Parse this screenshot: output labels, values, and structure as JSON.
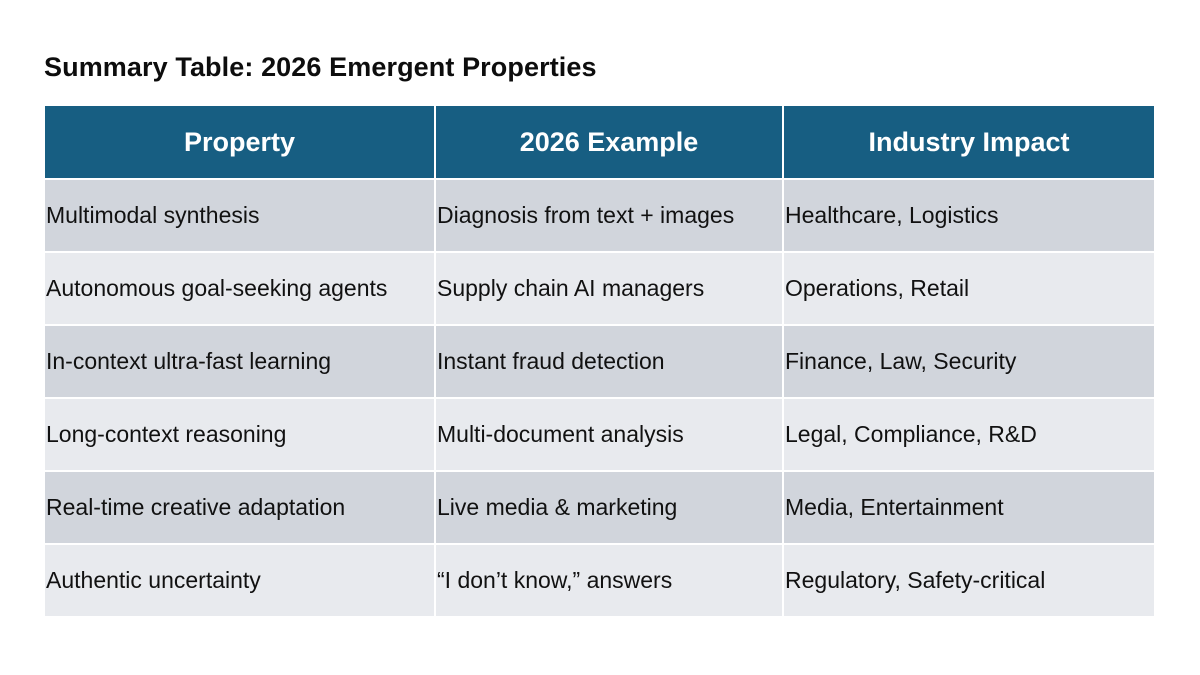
{
  "title": "Summary Table: 2026 Emergent Properties",
  "table": {
    "headers": [
      "Property",
      "2026 Example",
      "Industry Impact"
    ],
    "rows": [
      [
        "Multimodal synthesis",
        "Diagnosis from text + images",
        "Healthcare, Logistics"
      ],
      [
        "Autonomous goal-seeking agents",
        "Supply chain AI managers",
        "Operations, Retail"
      ],
      [
        "In-context ultra-fast learning",
        "Instant fraud detection",
        "Finance, Law, Security"
      ],
      [
        "Long-context reasoning",
        "Multi-document analysis",
        "Legal, Compliance, R&D"
      ],
      [
        "Real-time creative adaptation",
        "Live media & marketing",
        "Media, Entertainment"
      ],
      [
        "Authentic uncertainty",
        "“I don’t know,” answers",
        "Regulatory, Safety-critical"
      ]
    ]
  },
  "colors": {
    "header_bg": "#175e82",
    "header_text": "#ffffff",
    "row_dark": "#d1d5dc",
    "row_light": "#e8eaee"
  }
}
